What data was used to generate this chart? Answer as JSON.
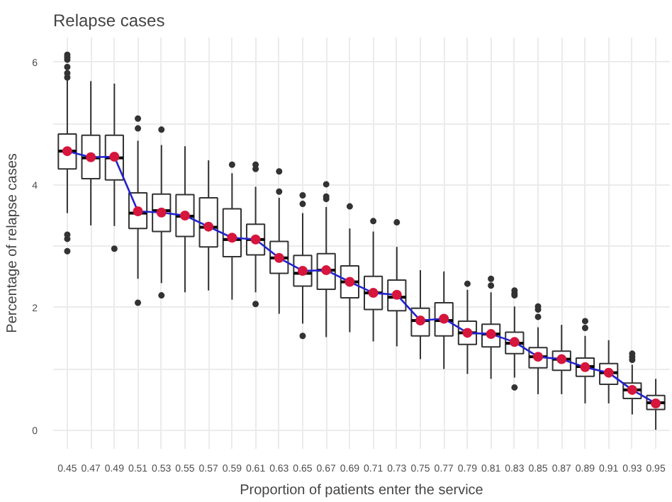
{
  "chart_data": {
    "type": "box",
    "title": "Relapse cases",
    "xlabel": "Proportion of patients enter the service",
    "ylabel": "Percentage of relapse cases",
    "categories": [
      "0.45",
      "0.47",
      "0.49",
      "0.51",
      "0.53",
      "0.55",
      "0.57",
      "0.59",
      "0.61",
      "0.63",
      "0.65",
      "0.67",
      "0.69",
      "0.71",
      "0.73",
      "0.75",
      "0.77",
      "0.79",
      "0.81",
      "0.83",
      "0.85",
      "0.87",
      "0.89",
      "0.91",
      "0.93",
      "0.95"
    ],
    "ylim": [
      -0.3,
      6.4
    ],
    "yticks": [
      0,
      {
        "value": 1,
        "label": null
      },
      2,
      {
        "value": 3,
        "label": null
      },
      4,
      {
        "value": 5,
        "label": null
      },
      6
    ],
    "grid": true,
    "series": [
      {
        "color": "#333333",
        "boxes": [
          {
            "low": 3.54,
            "q1": 4.26,
            "median": 4.55,
            "q3": 4.83,
            "high": 5.73,
            "outliers": [
              6.12,
              6.08,
              6.04,
              5.92,
              5.82,
              5.75,
              3.19,
              3.12,
              2.92
            ]
          },
          {
            "low": 3.34,
            "q1": 4.1,
            "median": 4.44,
            "q3": 4.81,
            "high": 5.69
          },
          {
            "low": 3.33,
            "q1": 4.08,
            "median": 4.44,
            "q3": 4.81,
            "high": 5.65,
            "outliers": [
              2.96
            ]
          },
          {
            "low": 2.47,
            "q1": 3.29,
            "median": 3.54,
            "q3": 3.87,
            "high": 4.72,
            "outliers": [
              5.08,
              4.92,
              2.08
            ]
          },
          {
            "low": 2.4,
            "q1": 3.24,
            "median": 3.58,
            "q3": 3.85,
            "high": 4.65,
            "outliers": [
              4.9,
              2.2
            ]
          },
          {
            "low": 2.25,
            "q1": 3.16,
            "median": 3.49,
            "q3": 3.84,
            "high": 4.63
          },
          {
            "low": 2.28,
            "q1": 2.99,
            "median": 3.31,
            "q3": 3.79,
            "high": 4.4
          },
          {
            "low": 2.13,
            "q1": 2.83,
            "median": 3.11,
            "q3": 3.61,
            "high": 4.19,
            "outliers": [
              4.33
            ]
          },
          {
            "low": 2.25,
            "q1": 2.86,
            "median": 3.11,
            "q3": 3.36,
            "high": 3.97,
            "outliers": [
              4.33,
              4.26,
              2.06
            ]
          },
          {
            "low": 1.9,
            "q1": 2.56,
            "median": 2.81,
            "q3": 3.08,
            "high": 3.79,
            "outliers": [
              4.22,
              3.89
            ]
          },
          {
            "low": 1.74,
            "q1": 2.35,
            "median": 2.56,
            "q3": 2.85,
            "high": 3.54,
            "outliers": [
              3.83,
              3.69,
              1.54
            ]
          },
          {
            "low": 1.52,
            "q1": 2.3,
            "median": 2.61,
            "q3": 2.88,
            "high": 3.64,
            "outliers": [
              4.01,
              3.81,
              3.77
            ]
          },
          {
            "low": 1.6,
            "q1": 2.16,
            "median": 2.42,
            "q3": 2.68,
            "high": 3.29,
            "outliers": [
              3.65
            ]
          },
          {
            "low": 1.45,
            "q1": 1.97,
            "median": 2.24,
            "q3": 2.51,
            "high": 3.24,
            "outliers": [
              3.41
            ]
          },
          {
            "low": 1.37,
            "q1": 1.95,
            "median": 2.17,
            "q3": 2.45,
            "high": 2.99,
            "outliers": [
              3.39
            ]
          },
          {
            "low": 1.16,
            "q1": 1.54,
            "median": 1.79,
            "q3": 1.99,
            "high": 2.61
          },
          {
            "low": 1.0,
            "q1": 1.54,
            "median": 1.79,
            "q3": 2.08,
            "high": 2.59
          },
          {
            "low": 0.92,
            "q1": 1.4,
            "median": 1.59,
            "q3": 1.78,
            "high": 2.29,
            "outliers": [
              2.39
            ]
          },
          {
            "low": 0.84,
            "q1": 1.36,
            "median": 1.57,
            "q3": 1.73,
            "high": 2.25,
            "outliers": [
              2.47,
              2.36
            ]
          },
          {
            "low": 0.86,
            "q1": 1.25,
            "median": 1.42,
            "q3": 1.6,
            "high": 2.02,
            "outliers": [
              2.28,
              2.23,
              2.2,
              0.7
            ]
          },
          {
            "low": 0.59,
            "q1": 1.02,
            "median": 1.2,
            "q3": 1.35,
            "high": 1.68,
            "outliers": [
              2.02,
              1.97,
              1.85
            ]
          },
          {
            "low": 0.59,
            "q1": 0.98,
            "median": 1.16,
            "q3": 1.29,
            "high": 1.72
          },
          {
            "low": 0.44,
            "q1": 0.88,
            "median": 1.04,
            "q3": 1.18,
            "high": 1.54,
            "outliers": [
              1.78,
              1.67
            ]
          },
          {
            "low": 0.44,
            "q1": 0.75,
            "median": 0.94,
            "q3": 1.09,
            "high": 1.47
          },
          {
            "low": 0.26,
            "q1": 0.52,
            "median": 0.66,
            "q3": 0.77,
            "high": 1.07,
            "outliers": [
              1.25,
              1.2,
              1.15
            ]
          },
          {
            "low": 0.01,
            "q1": 0.34,
            "median": 0.45,
            "q3": 0.57,
            "high": 0.84
          }
        ]
      },
      {
        "type": "line",
        "color": "#2222cc",
        "values": [
          4.55,
          4.45,
          4.46,
          3.57,
          3.55,
          3.5,
          3.32,
          3.14,
          3.11,
          2.81,
          2.6,
          2.61,
          2.42,
          2.24,
          2.21,
          1.79,
          1.82,
          1.59,
          1.57,
          1.44,
          1.2,
          1.16,
          1.03,
          0.94,
          0.66,
          0.44
        ]
      },
      {
        "type": "scatter",
        "color": "#d6163c",
        "values": [
          4.55,
          4.45,
          4.46,
          3.57,
          3.55,
          3.5,
          3.32,
          3.14,
          3.11,
          2.81,
          2.6,
          2.61,
          2.42,
          2.24,
          2.21,
          1.79,
          1.82,
          1.59,
          1.57,
          1.44,
          1.2,
          1.16,
          1.03,
          0.94,
          0.66,
          0.44
        ]
      }
    ]
  }
}
